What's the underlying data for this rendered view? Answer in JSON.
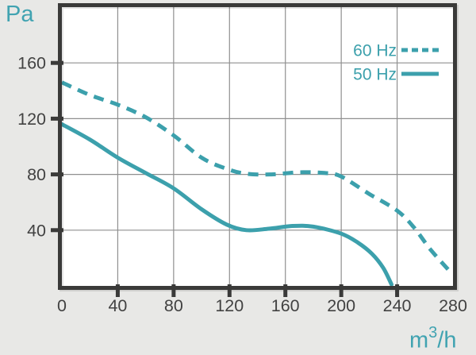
{
  "chart_data": {
    "type": "line",
    "title": "",
    "ylabel": "Pa",
    "xlabel": "m3/h",
    "xlabel_parts": {
      "base": "m",
      "sup": "3",
      "rest": "/h"
    },
    "xlim": [
      0,
      280
    ],
    "ylim": [
      0,
      200
    ],
    "x_tick_labels": [
      0,
      40,
      80,
      120,
      160,
      200,
      240,
      280
    ],
    "y_tick_labels": [
      40,
      80,
      120,
      160
    ],
    "x_gridlines": [
      40,
      80,
      120,
      160,
      200,
      240
    ],
    "y_gridlines": [
      40,
      80,
      120,
      160
    ],
    "grid": true,
    "legend_position": "top-right",
    "series": [
      {
        "name": "60 Hz",
        "line_style": "dashed",
        "color": "#3ca0ac",
        "points": [
          [
            0,
            146
          ],
          [
            20,
            137
          ],
          [
            40,
            130
          ],
          [
            60,
            121
          ],
          [
            80,
            108
          ],
          [
            100,
            92
          ],
          [
            118,
            84
          ],
          [
            132,
            80.5
          ],
          [
            150,
            80
          ],
          [
            170,
            81.5
          ],
          [
            188,
            81
          ],
          [
            200,
            78.5
          ],
          [
            220,
            66
          ],
          [
            240,
            54
          ],
          [
            252,
            42
          ],
          [
            264,
            26
          ],
          [
            279,
            9
          ]
        ]
      },
      {
        "name": "50 Hz",
        "line_style": "solid",
        "color": "#3ca0ac",
        "points": [
          [
            0,
            116
          ],
          [
            20,
            105
          ],
          [
            40,
            92
          ],
          [
            60,
            81
          ],
          [
            80,
            70
          ],
          [
            100,
            55
          ],
          [
            118,
            44
          ],
          [
            132,
            40
          ],
          [
            148,
            41
          ],
          [
            165,
            43
          ],
          [
            180,
            42.5
          ],
          [
            200,
            37.5
          ],
          [
            212,
            31
          ],
          [
            222,
            23
          ],
          [
            230,
            13
          ],
          [
            236,
            1
          ]
        ]
      }
    ]
  },
  "colors": {
    "accent_teal": "#3ca0ac",
    "frame_dark": "#3a3a39",
    "gridline_gray": "#8f8f8f",
    "tick_label_gray": "#424242",
    "page_background": "#e8e8e6",
    "plot_background": "#ffffff"
  }
}
